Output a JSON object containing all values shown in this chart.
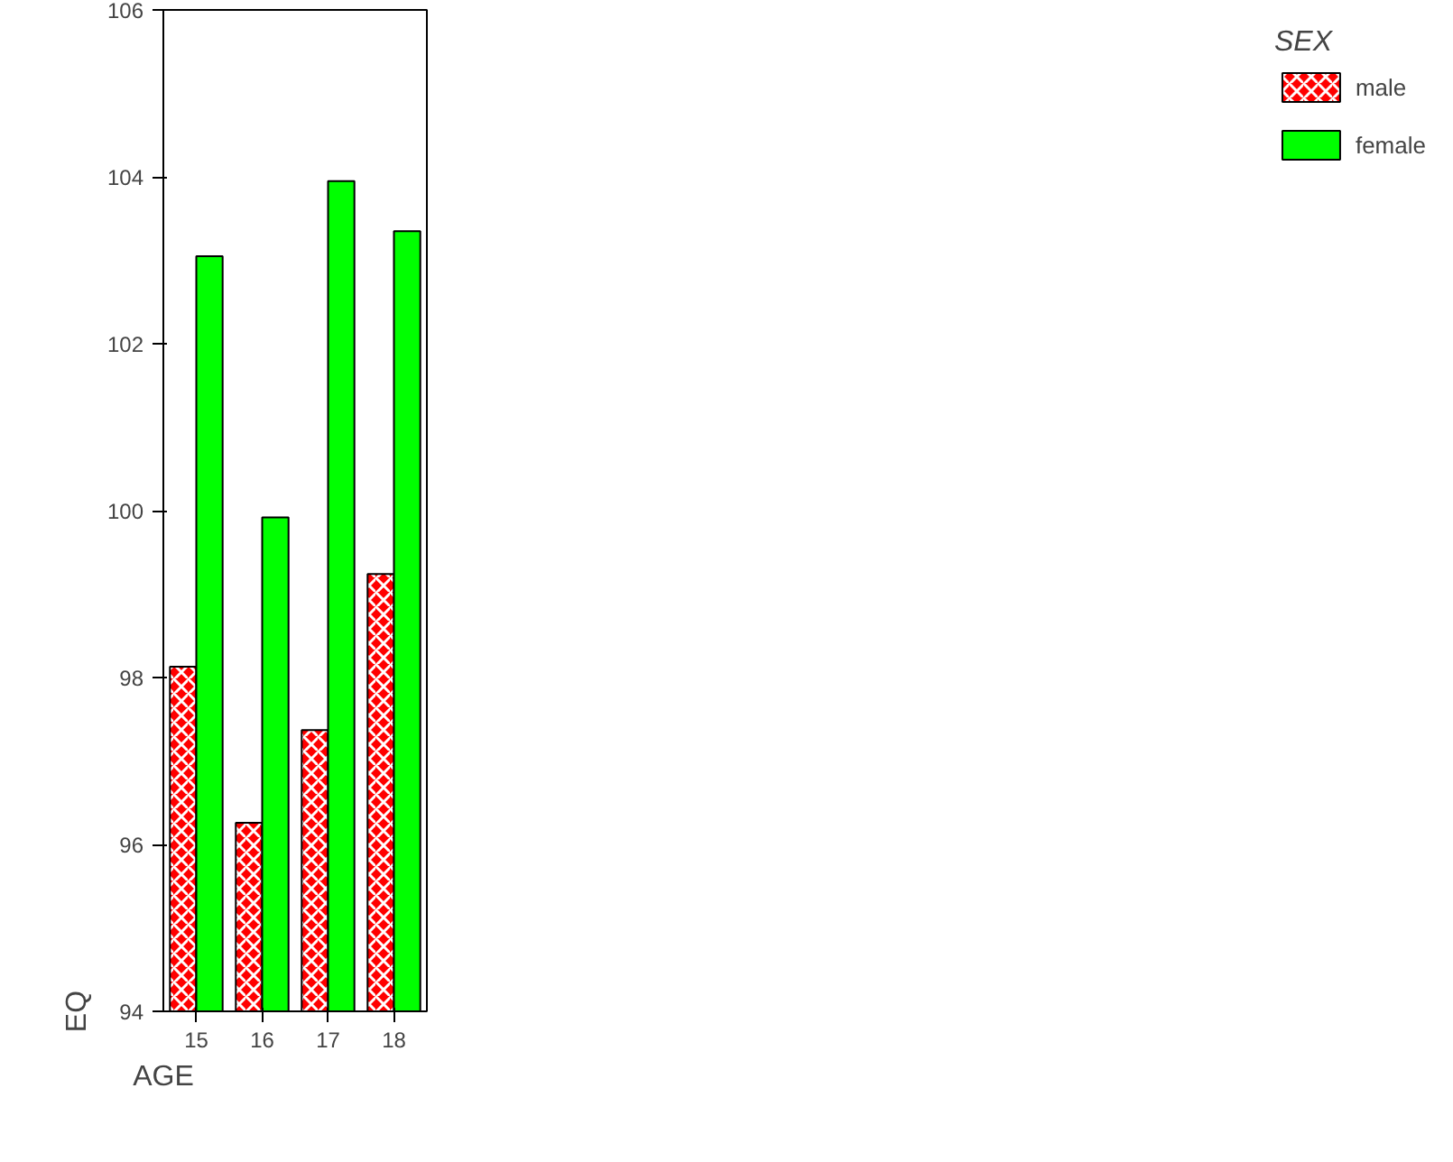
{
  "chart_data": {
    "type": "bar",
    "xlabel": "AGE",
    "ylabel": "EQ",
    "legend_title": "SEX",
    "categories": [
      "15",
      "16",
      "17",
      "18"
    ],
    "series": [
      {
        "name": "male",
        "color": "#ff0000",
        "values": [
          98.13,
          96.26,
          97.37,
          99.24
        ]
      },
      {
        "name": "female",
        "color": "#00ff00",
        "values": [
          103.05,
          99.92,
          103.95,
          103.35
        ]
      }
    ],
    "ylim": [
      94,
      106
    ],
    "yticks": [
      94,
      96,
      98,
      100,
      102,
      104,
      106
    ],
    "grid": false,
    "legend": "right"
  }
}
